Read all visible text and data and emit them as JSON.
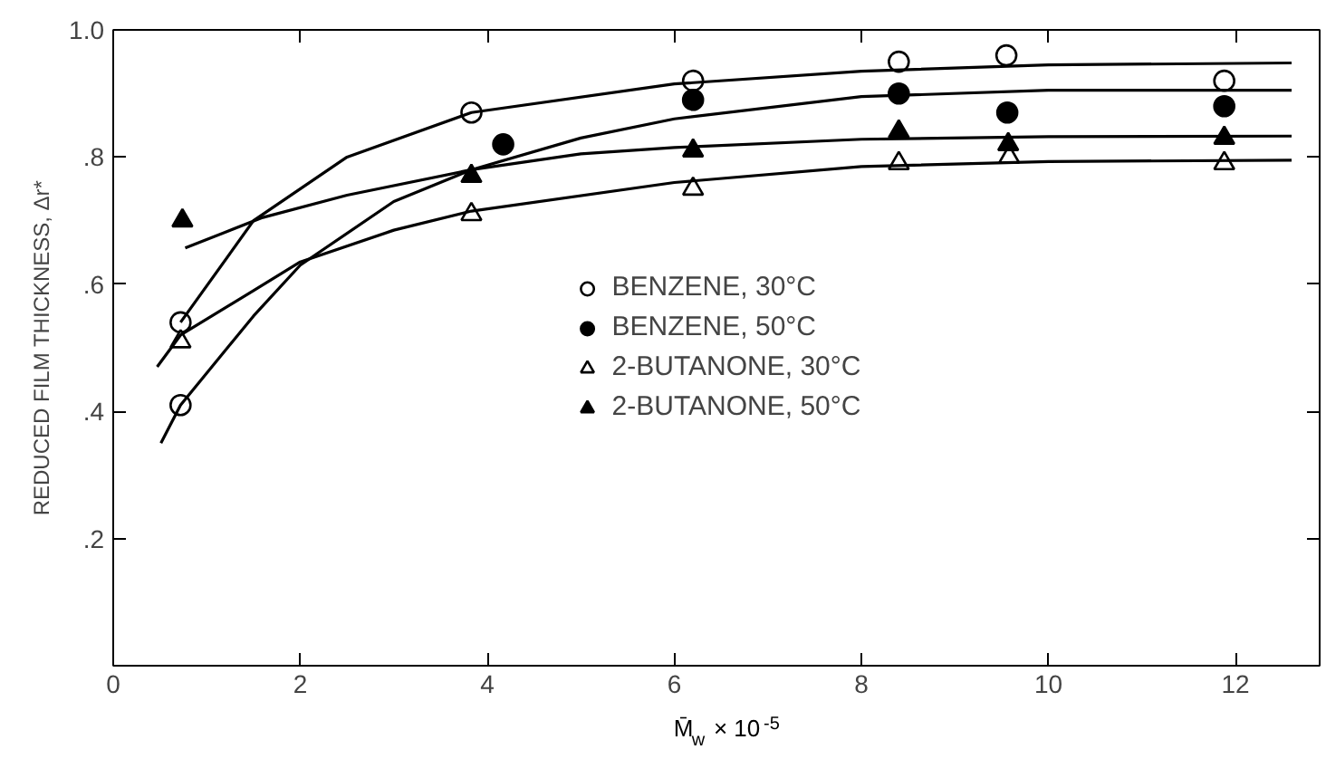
{
  "chart_data": {
    "type": "scatter",
    "xlabel": "M̄$_{w}$ × 10$^{-5}$",
    "ylabel": "REDUCED FILM THICKNESS, Δr*",
    "xlim": [
      0,
      12.9
    ],
    "ylim": [
      0,
      1.0
    ],
    "xticks": [
      0,
      2,
      4,
      6,
      8,
      10,
      12
    ],
    "yticks": [
      {
        "value": 0.2,
        "label": ".2"
      },
      {
        "value": 0.4,
        "label": ".4"
      },
      {
        "value": 0.6,
        "label": ".6"
      },
      {
        "value": 0.8,
        "label": ".8"
      },
      {
        "value": 1.0,
        "label": "1.0"
      }
    ],
    "grid": false,
    "legend": "center",
    "series": [
      {
        "name": "BENZENE, 30°C",
        "marker": "circle_open",
        "color": "#000000",
        "x": [
          0.72,
          0.72,
          3.83,
          6.2,
          8.4,
          9.55,
          11.88
        ],
        "values": [
          0.54,
          0.41,
          0.87,
          0.92,
          0.95,
          0.96,
          0.92
        ]
      },
      {
        "name": "BENZENE, 50°C",
        "marker": "circle",
        "color": "#000000",
        "x": [
          4.17,
          6.2,
          8.4,
          9.56,
          11.88
        ],
        "values": [
          0.82,
          0.89,
          0.9,
          0.87,
          0.88
        ]
      },
      {
        "name": "2-BUTANONE, 30°C",
        "marker": "triangle_open",
        "color": "#000000",
        "x": [
          0.72,
          3.83,
          6.2,
          8.4,
          9.58,
          11.88
        ],
        "values": [
          0.51,
          0.71,
          0.75,
          0.79,
          0.8,
          0.79
        ]
      },
      {
        "name": "2-BUTANONE, 50°C",
        "marker": "triangle",
        "color": "#000000",
        "x": [
          0.74,
          3.83,
          6.2,
          8.4,
          9.57,
          11.88
        ],
        "values": [
          0.7,
          0.77,
          0.81,
          0.84,
          0.82,
          0.83
        ]
      },
      {
        "type": "line",
        "line_style": "solid",
        "color": "#000000",
        "x": [
          0.72,
          1.5,
          2.5,
          3.83,
          6,
          8,
          10,
          12.6
        ],
        "values": [
          0.54,
          0.7,
          0.8,
          0.87,
          0.915,
          0.935,
          0.945,
          0.948
        ]
      },
      {
        "type": "line",
        "line_style": "solid",
        "color": "#000000",
        "x": [
          0.51,
          0.72,
          1.5,
          2,
          3,
          3.83,
          5,
          6,
          8,
          10,
          12.6
        ],
        "values": [
          0.35,
          0.41,
          0.55,
          0.63,
          0.73,
          0.78,
          0.83,
          0.86,
          0.895,
          0.905,
          0.905
        ]
      },
      {
        "type": "line",
        "line_style": "solid",
        "color": "#000000",
        "x": [
          0.47,
          0.72,
          1.5,
          2,
          3,
          3.83,
          6,
          8,
          10,
          12.6
        ],
        "values": [
          0.47,
          0.52,
          0.59,
          0.635,
          0.685,
          0.715,
          0.76,
          0.785,
          0.793,
          0.795
        ]
      },
      {
        "type": "line",
        "line_style": "solid",
        "color": "#000000",
        "x": [
          0.77,
          1.6,
          2.5,
          3.83,
          5,
          6,
          8,
          10,
          12.6
        ],
        "values": [
          0.657,
          0.705,
          0.74,
          0.78,
          0.805,
          0.815,
          0.828,
          0.832,
          0.833
        ]
      }
    ]
  }
}
